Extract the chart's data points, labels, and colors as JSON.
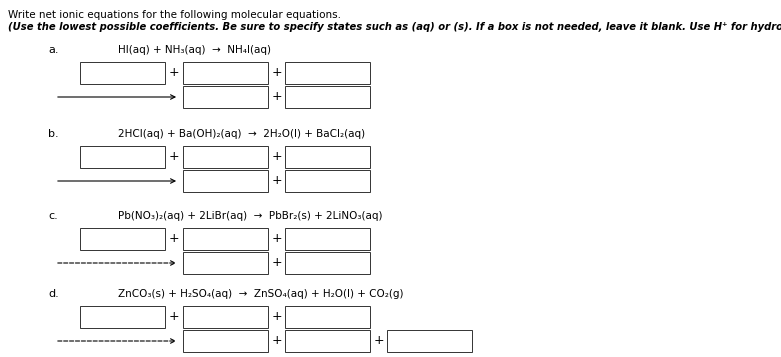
{
  "title1": "Write net ionic equations for the following molecular equations.",
  "title2": "(Use the lowest possible coefficients. Be sure to specify states such as (aq) or (s). If a box is not needed, leave it blank. Use H⁺ for hydronium ion.)",
  "sections": [
    {
      "label": "a.",
      "equation": "HI(aq) + NH₃(aq)  →  NH₄I(aq)",
      "row2_arrow": "solid"
    },
    {
      "label": "b.",
      "equation": "2HCl(aq) + Ba(OH)₂(aq)  →  2H₂O(l) + BaCl₂(aq)",
      "row2_arrow": "solid"
    },
    {
      "label": "c.",
      "equation": "Pb(NO₃)₂(aq) + 2LiBr(aq)  →  PbBr₂(s) + 2LiNO₃(aq)",
      "row2_arrow": "dashed"
    },
    {
      "label": "d.",
      "equation": "ZnCO₃(s) + H₂SO₄(aq)  →  ZnSO₄(aq) + H₂O(l) + CO₂(g)",
      "row2_arrow": "dashed",
      "row2_extra": true
    }
  ],
  "bg_color": "#ffffff",
  "box_color": "#000000",
  "text_color": "#000000"
}
